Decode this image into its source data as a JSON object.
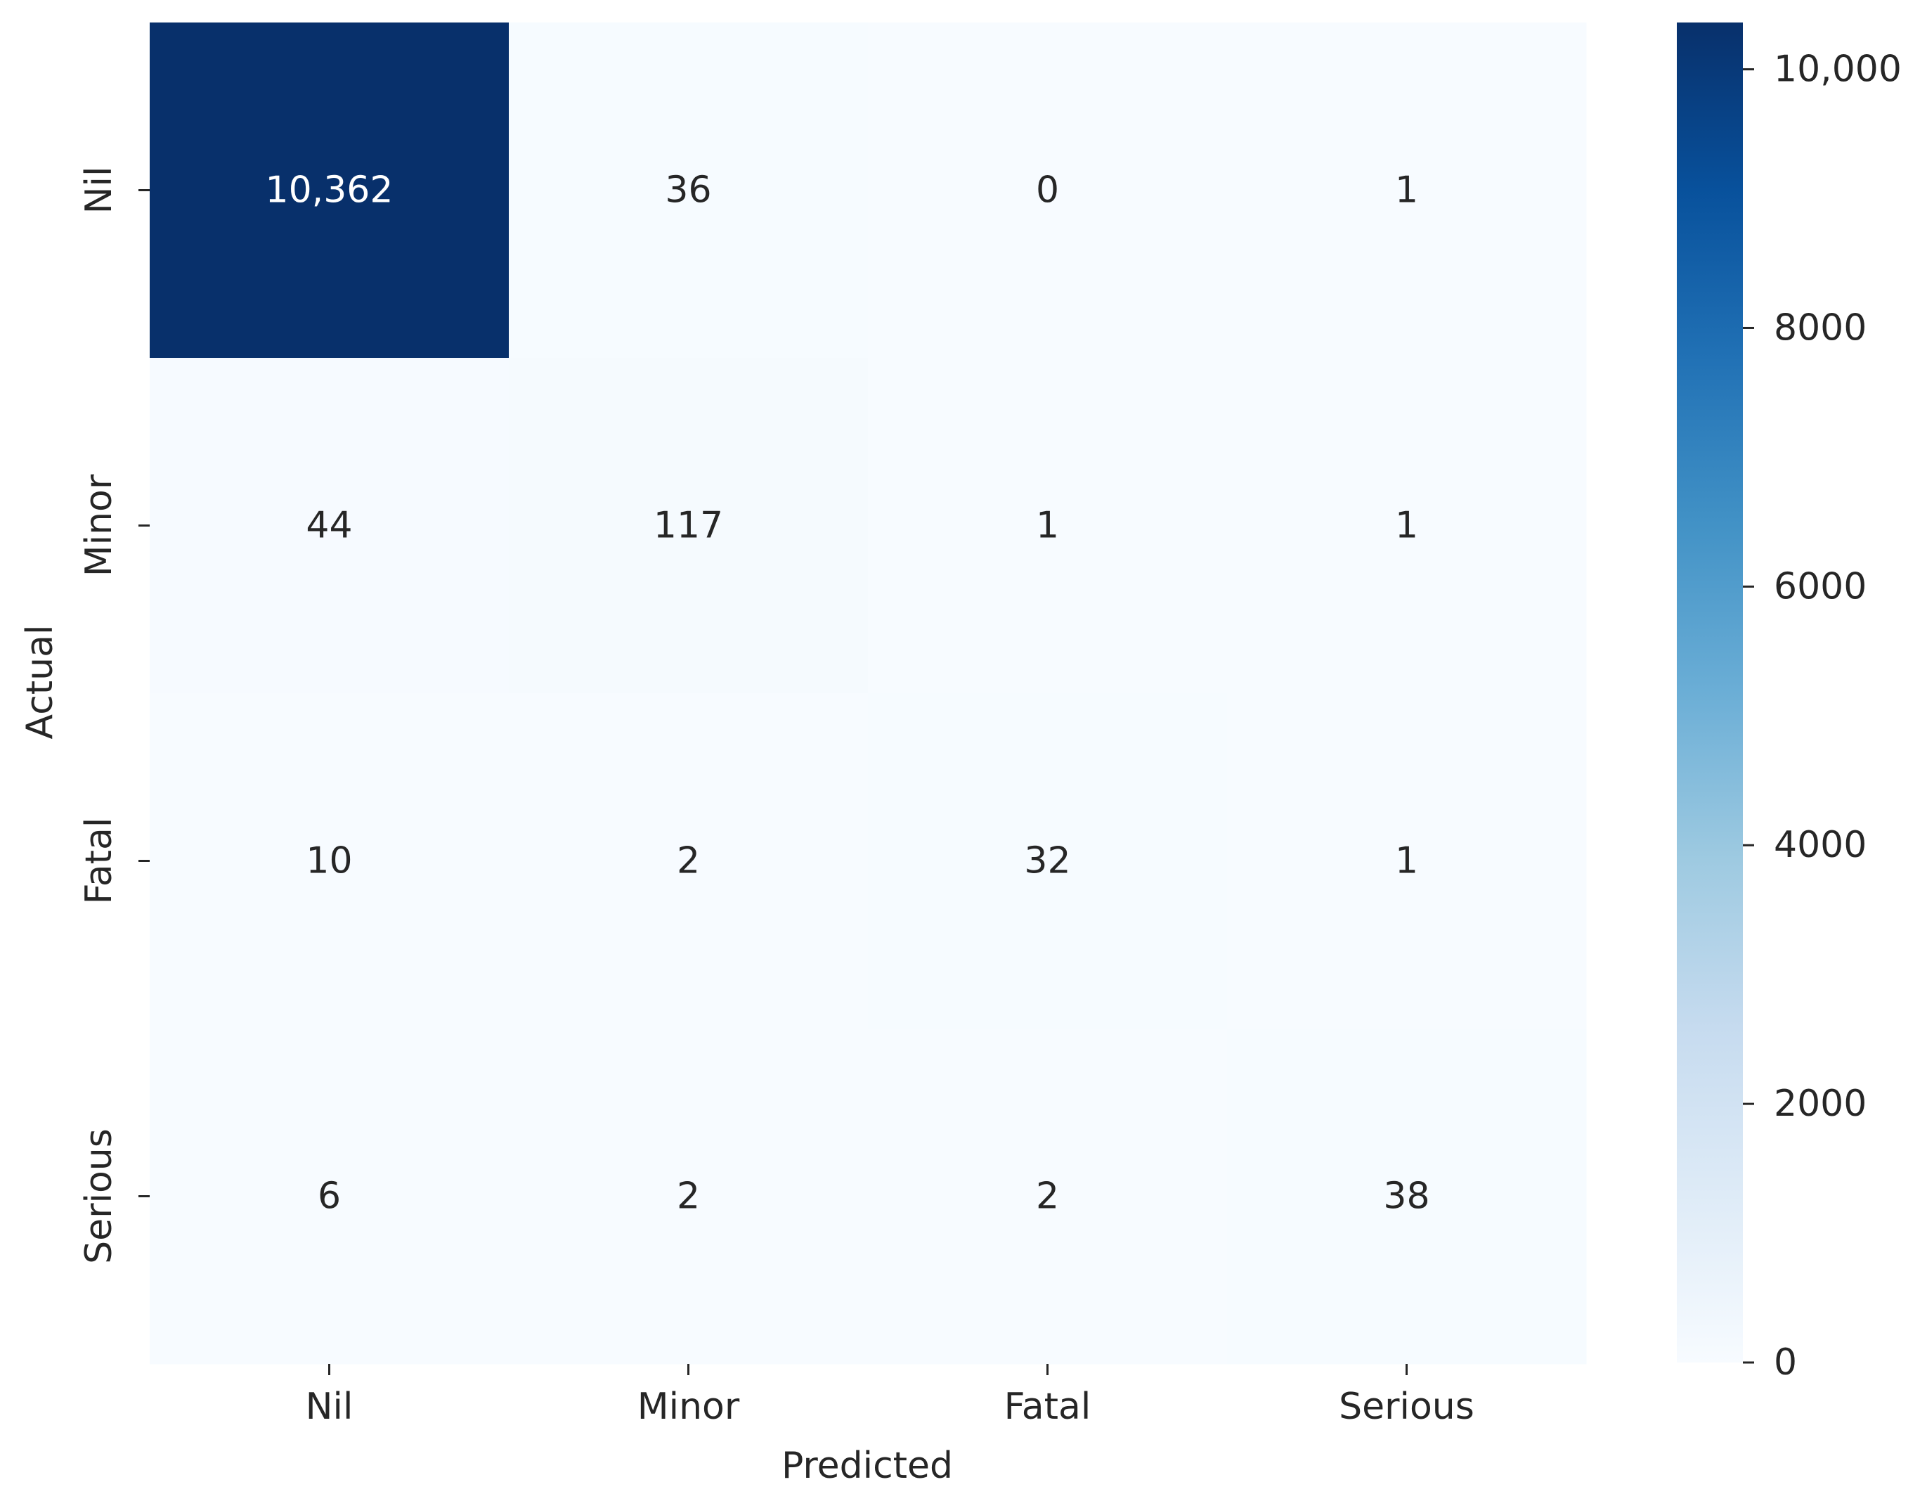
{
  "chart_data": {
    "type": "heatmap",
    "title": "",
    "xlabel": "Predicted",
    "ylabel": "Actual",
    "x_categories": [
      "Nil",
      "Minor",
      "Fatal",
      "Serious"
    ],
    "y_categories": [
      "Nil",
      "Minor",
      "Fatal",
      "Serious"
    ],
    "values": [
      [
        10362,
        36,
        0,
        1
      ],
      [
        44,
        117,
        1,
        1
      ],
      [
        10,
        2,
        32,
        1
      ],
      [
        6,
        2,
        2,
        38
      ]
    ],
    "cell_labels": [
      [
        "10,362",
        "36",
        "0",
        "1"
      ],
      [
        "44",
        "117",
        "1",
        "1"
      ],
      [
        "10",
        "2",
        "32",
        "1"
      ],
      [
        "6",
        "2",
        "2",
        "38"
      ]
    ],
    "colormap": "Blues",
    "colors": {
      "low": "#f7fbff",
      "high": "#08306b",
      "text_dark": "#262626",
      "text_light": "#ffffff"
    },
    "colorbar": {
      "range": [
        0,
        10362
      ],
      "ticks": [
        0,
        2000,
        4000,
        6000,
        8000,
        10000
      ],
      "tick_labels": [
        "0",
        "2000",
        "4000",
        "6000",
        "8000",
        "10,000"
      ]
    },
    "grid": false
  }
}
